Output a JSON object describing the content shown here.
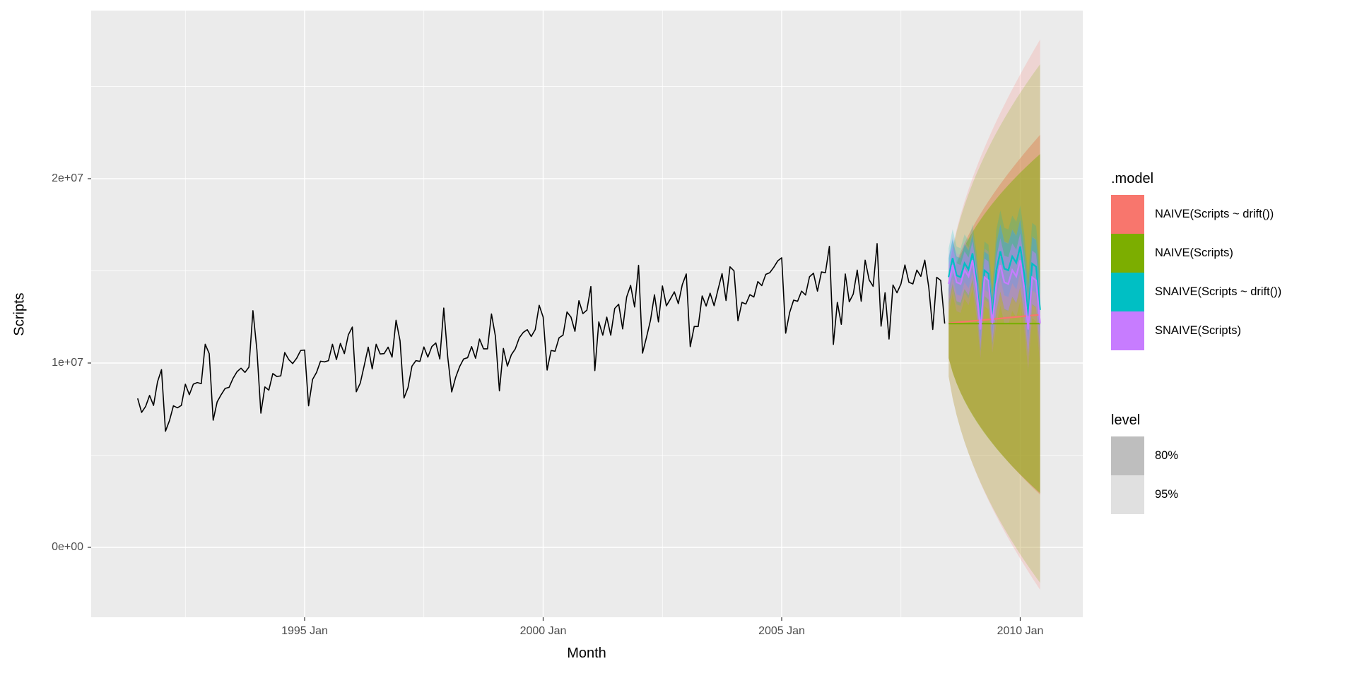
{
  "chart_data": {
    "type": "line",
    "title": "",
    "xlabel": "Month",
    "ylabel": "Scripts",
    "x_ticks": [
      "1995 Jan",
      "2000 Jan",
      "2005 Jan",
      "2010 Jan"
    ],
    "y_ticks": [
      "0e+00",
      "1e+07",
      "2e+07"
    ],
    "y_tick_values": [
      0,
      10000000,
      20000000
    ],
    "ylim": [
      -3400000,
      29500000
    ],
    "xlim_months": [
      "1991 Feb",
      "2010 Nov"
    ],
    "grid": true,
    "legend_placement": "right",
    "series_start": "1991 Jul",
    "series_frequency": "monthly",
    "history_unit": 1000000,
    "history": [
      8.08,
      7.32,
      7.64,
      8.24,
      7.7,
      8.98,
      9.64,
      6.3,
      6.87,
      7.68,
      7.57,
      7.7,
      8.85,
      8.28,
      8.85,
      8.94,
      8.88,
      11.02,
      10.51,
      6.9,
      7.89,
      8.28,
      8.62,
      8.68,
      9.17,
      9.53,
      9.72,
      9.49,
      9.78,
      12.84,
      10.7,
      7.28,
      8.7,
      8.53,
      9.43,
      9.27,
      9.3,
      10.57,
      10.19,
      9.97,
      10.26,
      10.68,
      10.7,
      7.68,
      9.11,
      9.49,
      10.1,
      10.06,
      10.13,
      11.02,
      10.19,
      11.06,
      10.51,
      11.53,
      11.95,
      8.44,
      8.91,
      9.87,
      10.86,
      9.68,
      11.02,
      10.49,
      10.51,
      10.86,
      10.32,
      12.32,
      11.21,
      8.1,
      8.66,
      9.83,
      10.13,
      10.09,
      10.87,
      10.32,
      10.89,
      11.09,
      10.22,
      12.98,
      10.32,
      8.43,
      9.23,
      9.81,
      10.22,
      10.29,
      10.89,
      10.26,
      11.3,
      10.77,
      10.77,
      12.66,
      11.44,
      8.49,
      10.79,
      9.83,
      10.45,
      10.77,
      11.37,
      11.66,
      11.81,
      11.44,
      11.81,
      13.13,
      12.49,
      9.62,
      10.68,
      10.64,
      11.37,
      11.51,
      12.77,
      12.49,
      11.72,
      13.38,
      12.68,
      12.87,
      14.15,
      9.59,
      12.23,
      11.51,
      12.49,
      11.51,
      12.96,
      13.19,
      11.85,
      13.58,
      14.21,
      13.04,
      15.3,
      10.54,
      11.4,
      12.32,
      13.7,
      12.23,
      14.18,
      13.1,
      13.47,
      13.86,
      13.22,
      14.25,
      14.83,
      10.89,
      11.98,
      11.98,
      13.64,
      13.09,
      13.79,
      13.11,
      14.0,
      14.85,
      13.39,
      15.22,
      15.0,
      12.29,
      13.29,
      13.2,
      13.71,
      13.58,
      14.42,
      14.2,
      14.81,
      14.9,
      15.19,
      15.54,
      15.71,
      11.62,
      12.74,
      13.41,
      13.35,
      13.9,
      13.69,
      14.68,
      14.87,
      13.9,
      14.94,
      14.9,
      16.33,
      11.01,
      13.29,
      12.1,
      14.83,
      13.32,
      13.74,
      15.04,
      13.35,
      15.58,
      14.51,
      14.16,
      16.48,
      12.0,
      13.81,
      11.3,
      14.23,
      13.81,
      14.29,
      15.32,
      14.38,
      14.29,
      15.04,
      14.7,
      15.58,
      14.1,
      11.82,
      14.65,
      14.48,
      12.14
    ],
    "forecast_start": "2008 Jul",
    "forecast_horizon_months": 24,
    "series": [
      {
        "name": "NAIVE(Scripts ~ drift())",
        "color": "#F8766D",
        "method": "naive_drift",
        "sigma": 1.47
      },
      {
        "name": "NAIVE(Scripts)",
        "color": "#7CAE00",
        "method": "naive",
        "sigma": 1.465
      },
      {
        "name": "SNAIVE(Scripts ~ drift())",
        "color": "#00BFC4",
        "method": "snaive_drift",
        "sigma": 0.8,
        "drift_per_year": 0.37
      },
      {
        "name": "SNAIVE(Scripts)",
        "color": "#C77CFF",
        "method": "snaive",
        "sigma": 0.8
      }
    ],
    "levels": [
      {
        "label": "80%",
        "z": 1.2816,
        "color": "#BEBEBE"
      },
      {
        "label": "95%",
        "z": 1.96,
        "color": "#E0E0E0"
      }
    ]
  },
  "legend": {
    "model_title": ".model",
    "level_title": "level"
  }
}
